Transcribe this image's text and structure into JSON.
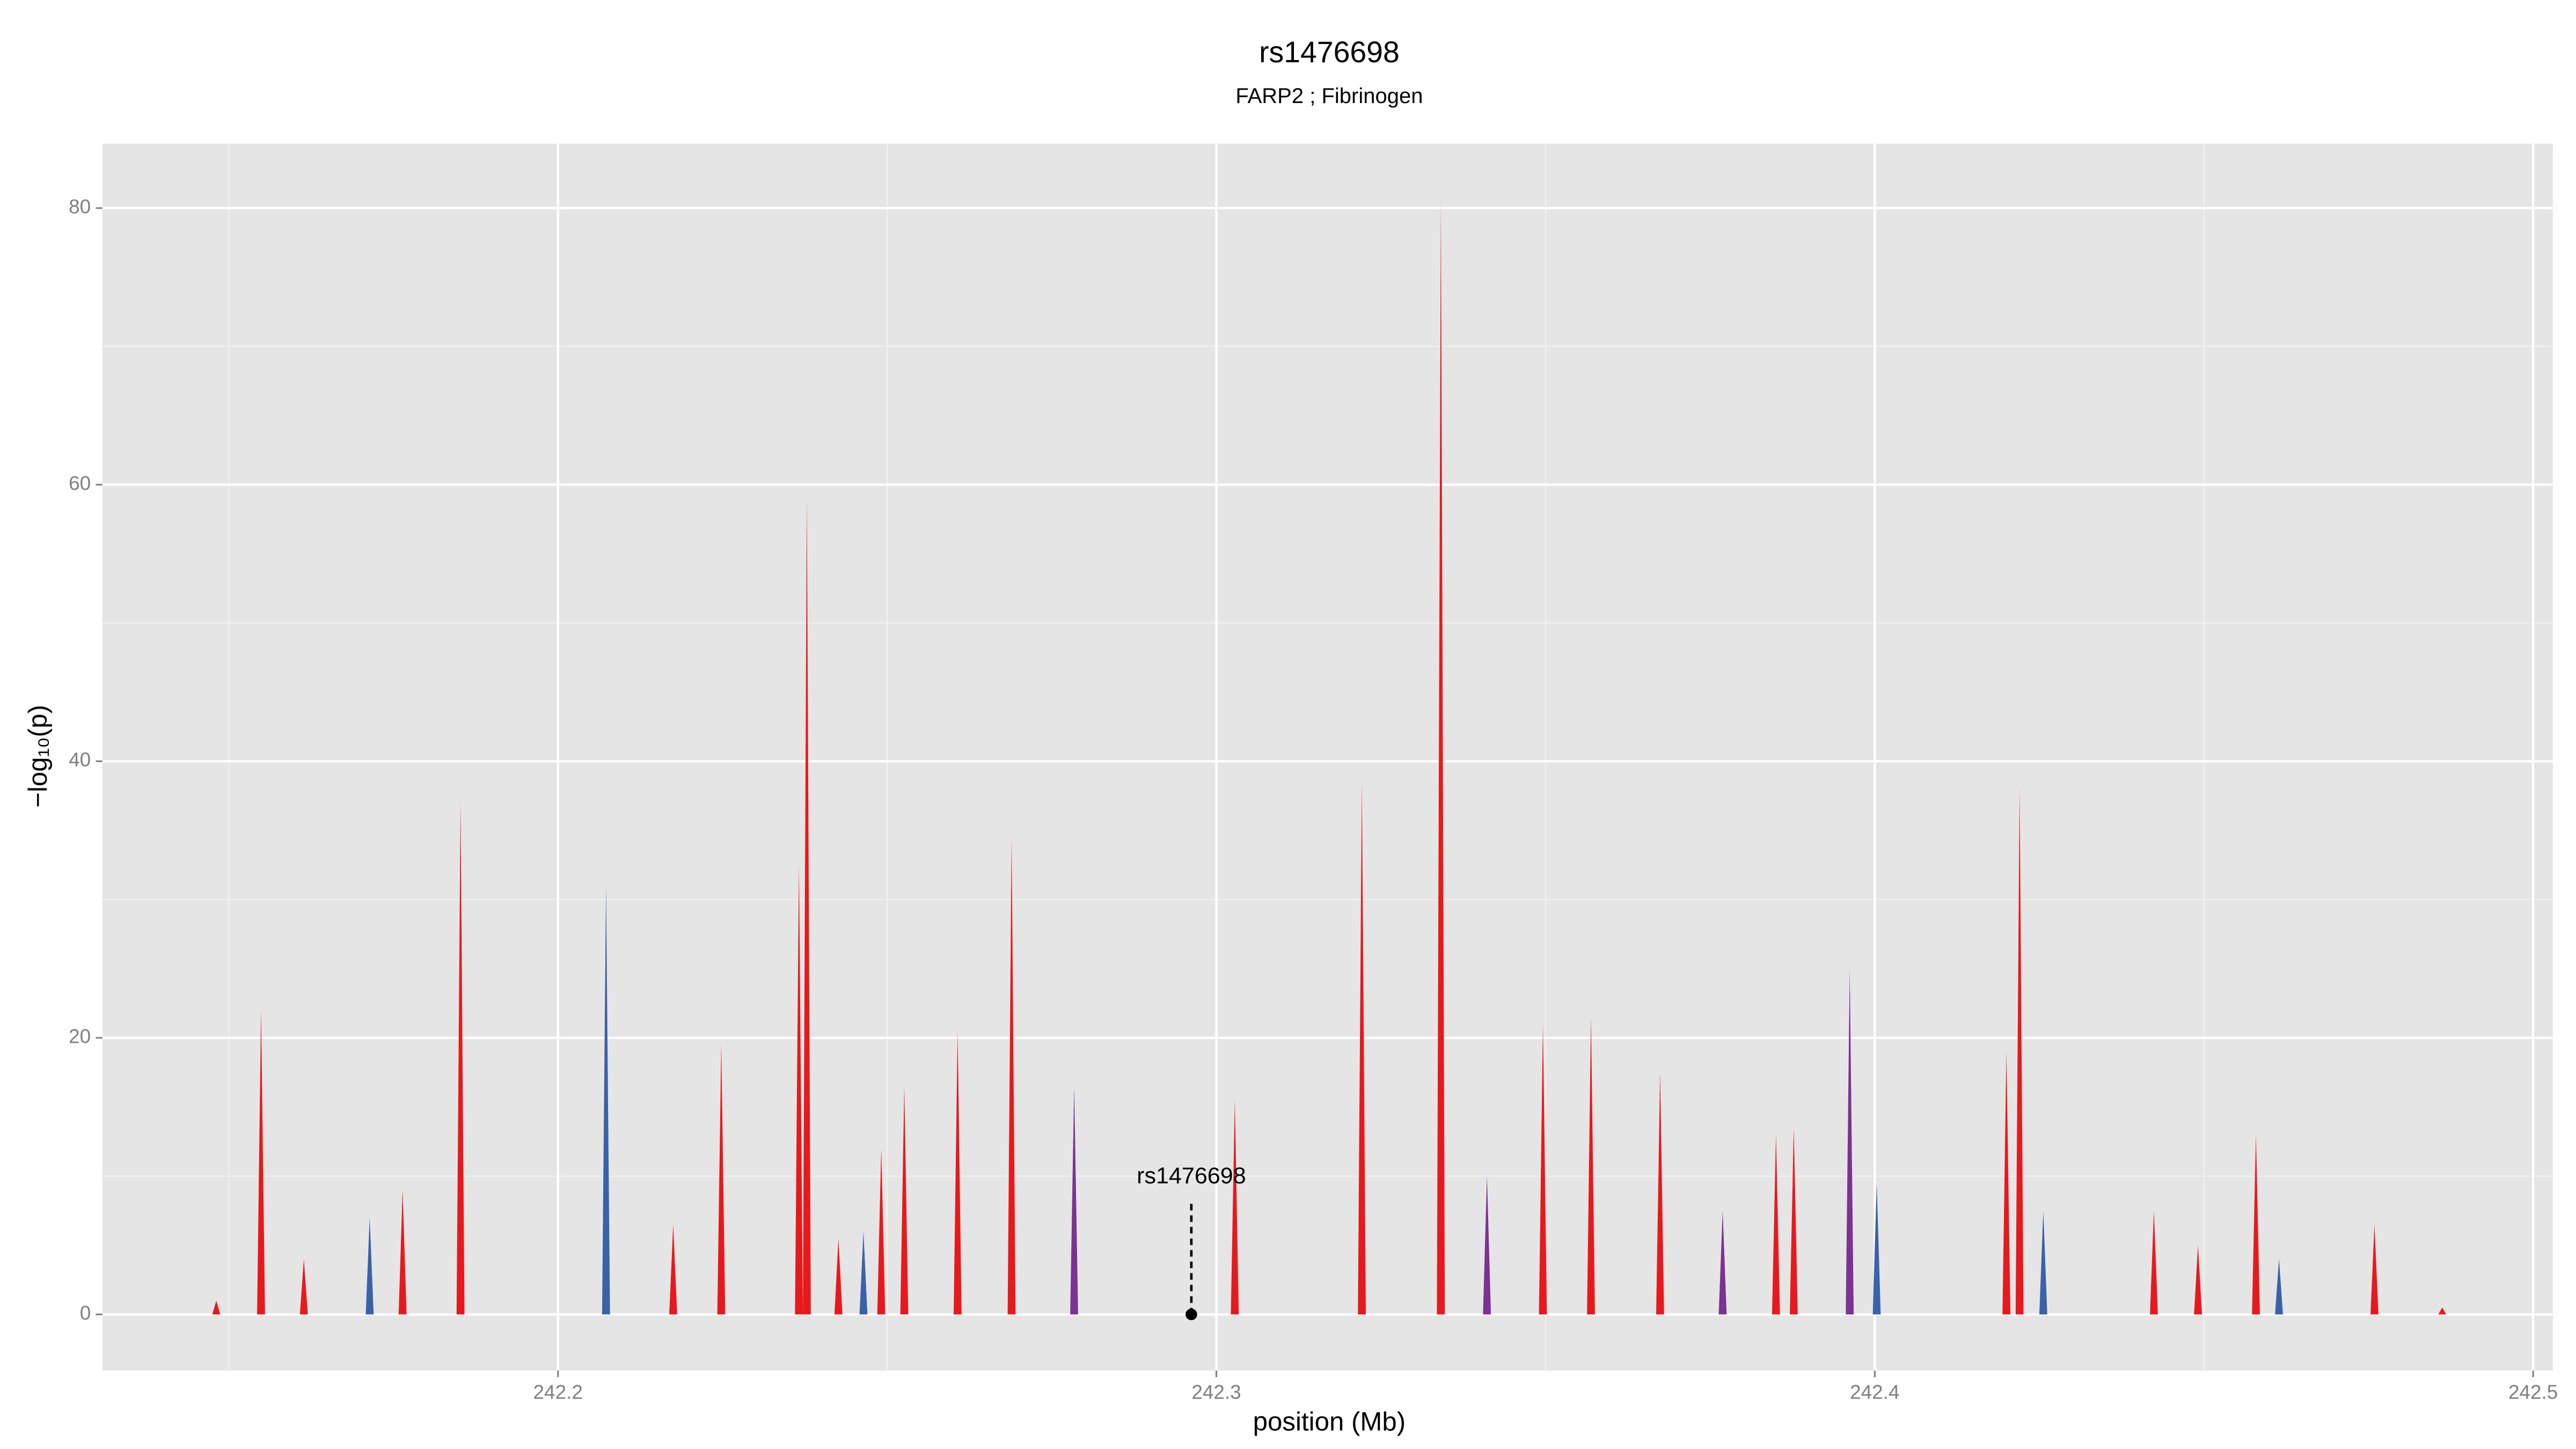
{
  "chart_data": {
    "type": "spike",
    "title": "rs1476698",
    "subtitle": "FARP2 ; Fibrinogen",
    "xlabel": "position (Mb)",
    "ylabel": "−log₁₀(p)",
    "xlim": [
      242.1308,
      242.503
    ],
    "ylim": [
      -4.06,
      84.66
    ],
    "xticks": [
      242.2,
      242.3,
      242.4,
      242.5
    ],
    "yticks": [
      0,
      20,
      40,
      60,
      80
    ],
    "xminorticks": [
      242.15,
      242.25,
      242.35,
      242.45
    ],
    "yminorticks": [
      10,
      30,
      50,
      70
    ],
    "grid": true,
    "series": [
      {
        "color": "#3a62a8",
        "x": [
          242.1714,
          242.2073,
          242.2464,
          242.4003,
          242.4256,
          242.4614
        ],
        "values": [
          7,
          31,
          6,
          9.5,
          7.5,
          4
        ]
      },
      {
        "color": "#7b3294",
        "x": [
          242.2784,
          242.3411,
          242.3769,
          242.3962
        ],
        "values": [
          16.5,
          10,
          7.5,
          25
        ]
      },
      {
        "color": "#e8191c",
        "x": [
          242.1481,
          242.1549,
          242.1614,
          242.1764,
          242.1852,
          242.2175,
          242.2248,
          242.2366,
          242.2378,
          242.2426,
          242.2491,
          242.2526,
          242.2607,
          242.2689,
          242.3028,
          242.3221,
          242.3341,
          242.3496,
          242.3569,
          242.3674,
          242.385,
          242.3877,
          242.42,
          242.422,
          242.4424,
          242.4491,
          242.4579,
          242.4759,
          242.4862
        ],
        "values": [
          1,
          22,
          4,
          9,
          37,
          6.5,
          19.5,
          32.5,
          59,
          5.5,
          12,
          16.5,
          20.5,
          34.5,
          15.5,
          38.5,
          80.5,
          21,
          21.5,
          17.5,
          13,
          13.5,
          19,
          38,
          7.5,
          5,
          13,
          6.5,
          0.5
        ]
      }
    ],
    "annotation": {
      "label": "rs1476698",
      "x": 242.2962,
      "y": 0,
      "y_end": 8
    }
  }
}
